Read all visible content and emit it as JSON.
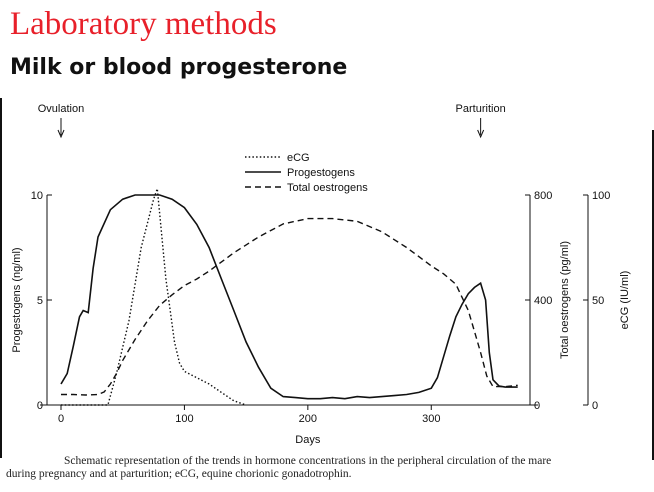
{
  "slide": {
    "title": "Laboratory methods",
    "subtitle": "Milk or blood progesterone"
  },
  "chart_data": {
    "type": "line",
    "title": "",
    "xlabel": "Days",
    "xlim": [
      -5,
      375
    ],
    "xticks": [
      0,
      100,
      200,
      300
    ],
    "left_axis": {
      "label": "Progestogens (ng/ml)",
      "ylim": [
        0,
        10
      ],
      "ticks": [
        0,
        5,
        10
      ]
    },
    "right_axis_1": {
      "label": "Total oestrogens (pg/ml)",
      "ylim": [
        0,
        800
      ],
      "ticks": [
        0,
        400,
        800
      ]
    },
    "right_axis_2": {
      "label": "eCG (IU/ml)",
      "ylim": [
        0,
        100
      ],
      "ticks": [
        0,
        50,
        100
      ]
    },
    "annotations": [
      {
        "label": "Ovulation",
        "x": 0
      },
      {
        "label": "Parturition",
        "x": 340
      }
    ],
    "series": [
      {
        "name": "eCG",
        "style": "dotted",
        "axis": "right_axis_2",
        "x": [
          0,
          38,
          45,
          55,
          65,
          75,
          78,
          85,
          92,
          96,
          100,
          110,
          120,
          130,
          140,
          150
        ],
        "values": [
          0,
          0,
          15,
          40,
          75,
          98,
          103,
          60,
          30,
          20,
          16,
          13,
          10,
          6,
          2,
          0
        ]
      },
      {
        "name": "Progestogens",
        "style": "solid",
        "axis": "left_axis",
        "x": [
          0,
          5,
          10,
          15,
          18,
          22,
          26,
          30,
          40,
          50,
          60,
          70,
          80,
          90,
          100,
          110,
          120,
          130,
          140,
          150,
          160,
          170,
          180,
          190,
          200,
          210,
          220,
          230,
          240,
          250,
          260,
          270,
          280,
          290,
          300,
          305,
          310,
          315,
          320,
          325,
          330,
          335,
          340,
          344,
          347,
          350,
          355,
          360,
          370
        ],
        "values": [
          1.0,
          1.5,
          2.8,
          4.2,
          4.5,
          4.4,
          6.5,
          8.0,
          9.3,
          9.8,
          10.0,
          10.0,
          10.0,
          9.8,
          9.4,
          8.6,
          7.5,
          6.0,
          4.5,
          3.0,
          1.8,
          0.8,
          0.4,
          0.35,
          0.3,
          0.3,
          0.35,
          0.3,
          0.4,
          0.35,
          0.4,
          0.45,
          0.5,
          0.6,
          0.8,
          1.3,
          2.3,
          3.3,
          4.2,
          4.8,
          5.3,
          5.6,
          5.8,
          5.0,
          2.5,
          1.2,
          0.9,
          0.85,
          0.85
        ]
      },
      {
        "name": "Total oestrogens",
        "style": "dashed",
        "axis": "right_axis_1",
        "x": [
          0,
          10,
          20,
          30,
          35,
          40,
          45,
          50,
          60,
          70,
          80,
          90,
          100,
          110,
          120,
          140,
          160,
          180,
          200,
          220,
          240,
          260,
          280,
          300,
          310,
          320,
          330,
          335,
          340,
          345,
          350,
          360,
          370
        ],
        "values": [
          40,
          40,
          38,
          40,
          50,
          80,
          120,
          170,
          250,
          320,
          380,
          420,
          455,
          480,
          510,
          580,
          640,
          690,
          710,
          710,
          700,
          660,
          600,
          530,
          500,
          460,
          360,
          280,
          200,
          110,
          70,
          70,
          75
        ]
      }
    ],
    "legend_position": "top-center"
  },
  "caption": {
    "line1": "Schematic representation of the trends in hormone concentrations in the peripheral circulation of the mare",
    "line2": "during pregnancy and at parturition; eCG, equine chorionic gonadotrophin."
  }
}
